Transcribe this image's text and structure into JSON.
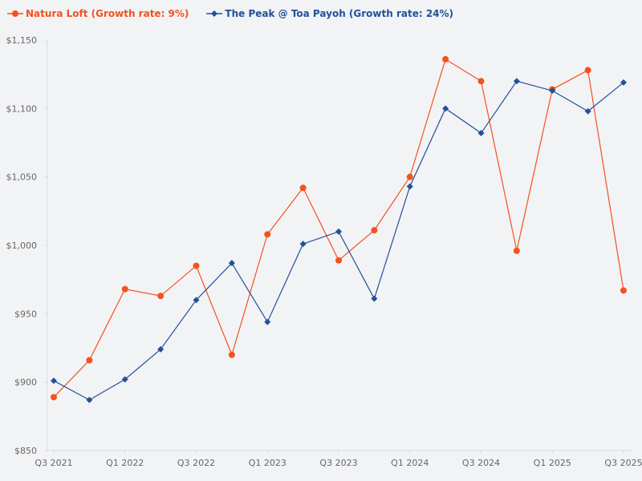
{
  "chart_data": {
    "type": "line",
    "title": "",
    "xlabel": "",
    "ylabel": "",
    "categories": [
      "Q3 2021",
      "Q4 2021",
      "Q1 2022",
      "Q2 2022",
      "Q3 2022",
      "Q4 2022",
      "Q1 2023",
      "Q2 2023",
      "Q3 2023",
      "Q4 2023",
      "Q1 2024",
      "Q2 2024",
      "Q3 2024",
      "Q4 2024",
      "Q1 2025",
      "Q2 2025",
      "Q3 2025"
    ],
    "x_tick_labels": [
      "Q3 2021",
      "Q1 2022",
      "Q3 2022",
      "Q1 2023",
      "Q3 2023",
      "Q1 2024",
      "Q3 2024",
      "Q1 2025",
      "Q3 2025"
    ],
    "ylim": [
      850,
      1150
    ],
    "y_ticks": [
      850,
      900,
      950,
      1000,
      1050,
      1100,
      1150
    ],
    "y_tick_labels": [
      "$850",
      "$900",
      "$950",
      "$1,000",
      "$1,050",
      "$1,100",
      "$1,150"
    ],
    "grid": false,
    "legend_position": "top-left",
    "series": [
      {
        "name": "Natura Loft (Growth rate: 9%)",
        "color": "#f4511e",
        "marker": "circle",
        "values": [
          889,
          916,
          968,
          963,
          985,
          920,
          1008,
          1042,
          989,
          1011,
          1050,
          1136,
          1120,
          996,
          1114,
          1128,
          967
        ]
      },
      {
        "name": "The Peak @ Toa Payoh (Growth rate: 24%)",
        "color": "#23509b",
        "marker": "diamond",
        "values": [
          901,
          887,
          902,
          924,
          960,
          987,
          944,
          1001,
          1010,
          961,
          1043,
          1100,
          1082,
          1120,
          1113,
          1098,
          1119
        ]
      }
    ]
  }
}
